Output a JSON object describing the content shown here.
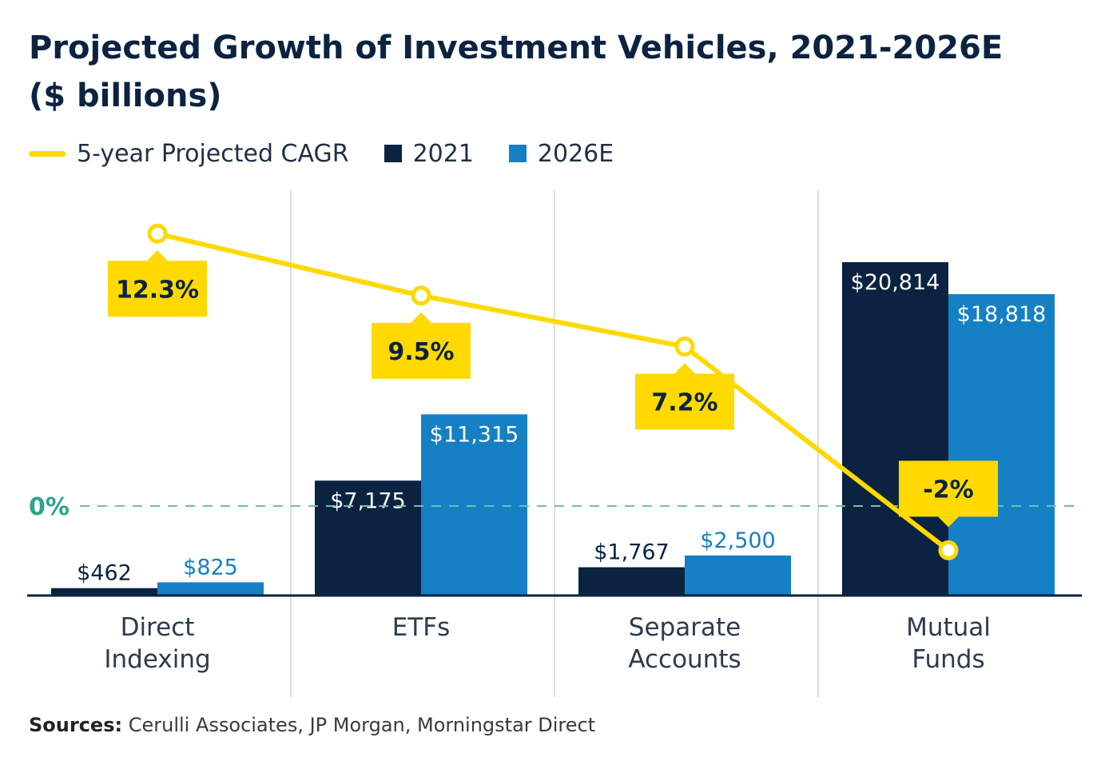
{
  "title_line1": "Projected Growth of Investment Vehicles, 2021-2026E",
  "title_line2": "($ billions)",
  "legend": {
    "cagr": "5-year Projected CAGR",
    "y2021": "2021",
    "y2026": "2026E"
  },
  "colors": {
    "y2021": "#0b2341",
    "y2026": "#1580c4",
    "cagr": "#ffd900",
    "zero_line": "#6fc0a8",
    "grid": "#d9dee3",
    "axis": "#0b2341"
  },
  "chart_data": {
    "type": "bar",
    "categories": [
      [
        "Direct",
        "Indexing"
      ],
      [
        "ETFs"
      ],
      [
        "Separate",
        "Accounts"
      ],
      [
        "Mutual",
        "Funds"
      ]
    ],
    "series": [
      {
        "name": "2021",
        "values": [
          462,
          7175,
          1767,
          20814
        ],
        "labels": [
          "$462",
          "$7,175",
          "$1,767",
          "$20,814"
        ]
      },
      {
        "name": "2026E",
        "values": [
          825,
          11315,
          2500,
          18818
        ],
        "labels": [
          "$825",
          "$11,315",
          "$2,500",
          "$18,818"
        ]
      }
    ],
    "line_series": {
      "name": "5-year Projected CAGR",
      "values": [
        12.3,
        9.5,
        7.2,
        -2
      ],
      "labels": [
        "12.3%",
        "9.5%",
        "7.2%",
        "-2%"
      ]
    },
    "zero_label": "0%"
  },
  "sources_label": "Sources:",
  "sources_text": " Cerulli Associates, JP Morgan, Morningstar Direct"
}
